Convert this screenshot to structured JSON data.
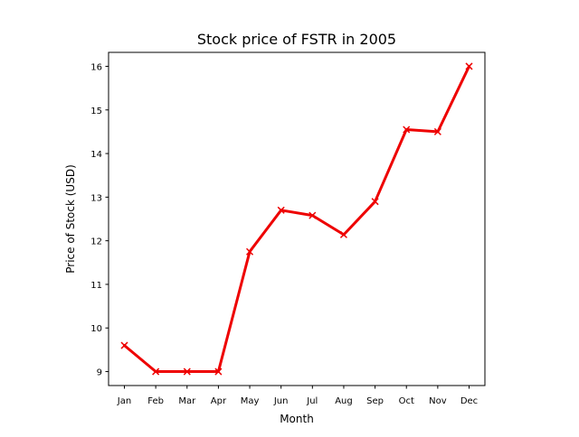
{
  "chart_data": {
    "type": "line",
    "title": "Stock price of FSTR in 2005",
    "xlabel": "Month",
    "ylabel": "Price of Stock (USD)",
    "categories": [
      "Jan",
      "Feb",
      "Mar",
      "Apr",
      "May",
      "Jun",
      "Jul",
      "Aug",
      "Sep",
      "Oct",
      "Nov",
      "Dec"
    ],
    "series": [
      {
        "values": [
          9.6,
          9.0,
          9.0,
          9.0,
          11.75,
          12.7,
          12.58,
          12.14,
          12.9,
          14.55,
          14.5,
          16.0
        ],
        "color": "#ee0000",
        "marker": "x"
      }
    ],
    "ylim": [
      8.68,
      16.32
    ],
    "yticks": [
      9,
      10,
      11,
      12,
      13,
      14,
      15,
      16
    ],
    "grid": false,
    "legend": "none"
  }
}
